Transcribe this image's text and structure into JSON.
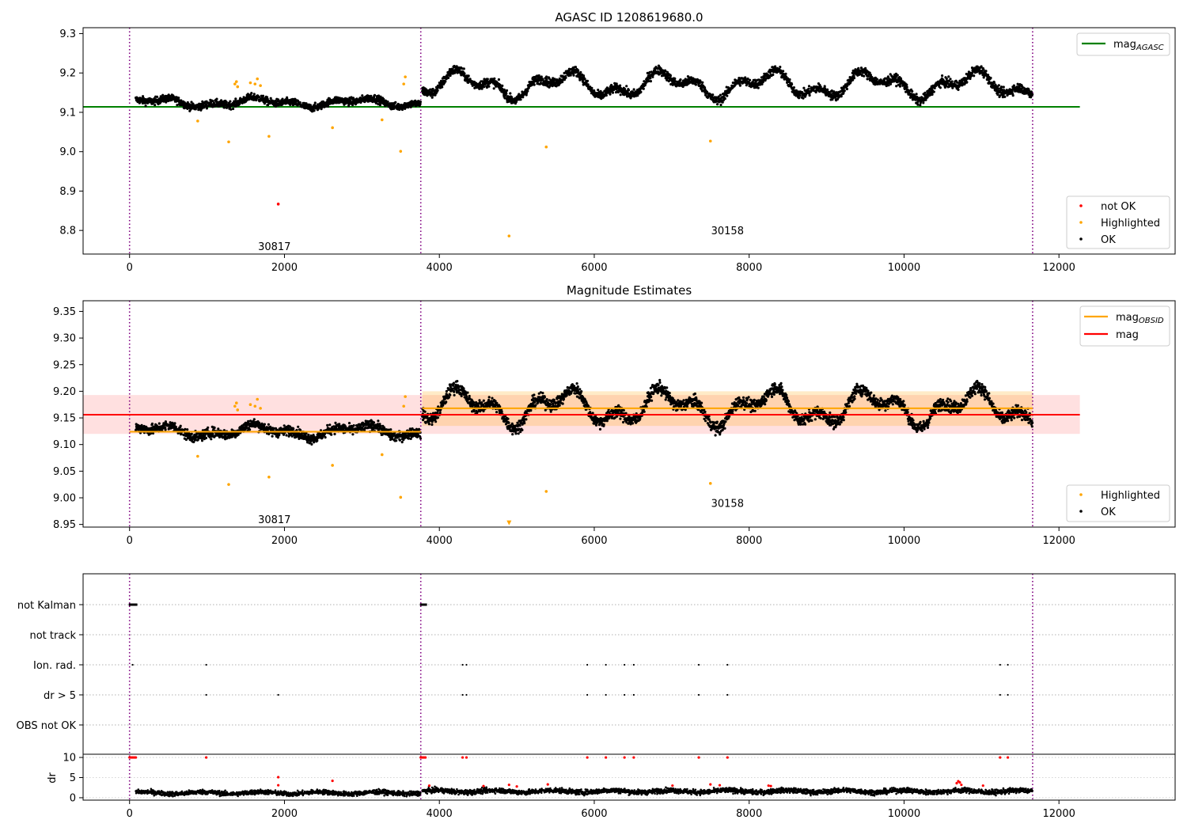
{
  "chart_data": [
    {
      "type": "scatter",
      "title": "AGASC ID 1208619680.0",
      "xlim": [
        -600,
        13500
      ],
      "ylim": [
        8.74,
        9.315
      ],
      "xticks": [
        0,
        2000,
        4000,
        6000,
        8000,
        10000,
        12000
      ],
      "yticks": [
        8.8,
        8.9,
        9.0,
        9.1,
        9.2,
        9.3
      ],
      "obs_boundaries": [
        0,
        3760,
        11660
      ],
      "obsid_labels": [
        {
          "text": "30817",
          "x": 1870,
          "y": 8.76
        },
        {
          "text": "30158",
          "x": 7720,
          "y": 8.8
        }
      ],
      "lines": [
        {
          "name": "mag",
          "subscript": "AGASC",
          "color": "#008000",
          "x": [
            -600,
            12270
          ],
          "y": [
            9.114,
            9.114
          ]
        }
      ],
      "segments": [
        {
          "x": [
            80,
            3760
          ],
          "base": 9.125,
          "amp": 0.012,
          "noise": 0.009
        },
        {
          "x": [
            3780,
            11660
          ],
          "base": 9.17,
          "amp": 0.035,
          "noise": 0.011
        }
      ],
      "highlighted": {
        "color": "#ffa500",
        "x": [
          880,
          1280,
          1360,
          1380,
          1395,
          1560,
          1620,
          1650,
          1690,
          1800,
          2620,
          3260,
          3500,
          3540,
          3560,
          5380,
          4900,
          7500
        ],
        "y": [
          9.078,
          9.025,
          9.172,
          9.178,
          9.165,
          9.175,
          9.172,
          9.185,
          9.168,
          9.039,
          9.061,
          9.081,
          9.001,
          9.172,
          9.19,
          9.012,
          8.786,
          9.027
        ]
      },
      "not_ok": {
        "color": "#ff0000",
        "x": [
          1920
        ],
        "y": [
          8.867
        ]
      },
      "legend_top": [
        {
          "label": "mag",
          "sub": "AGASC",
          "color": "#008000"
        }
      ],
      "legend_bottom": [
        {
          "label": "not OK",
          "color": "#ff0000"
        },
        {
          "label": "Highlighted",
          "color": "#ffa500"
        },
        {
          "label": "OK",
          "color": "#000000"
        }
      ]
    },
    {
      "type": "scatter",
      "title": "Magnitude Estimates",
      "xlim": [
        -600,
        13500
      ],
      "ylim": [
        8.945,
        9.37
      ],
      "xticks": [
        0,
        2000,
        4000,
        6000,
        8000,
        10000,
        12000
      ],
      "yticks": [
        8.95,
        9.0,
        9.05,
        9.1,
        9.15,
        9.2,
        9.25,
        9.3,
        9.35
      ],
      "obs_boundaries": [
        0,
        3760,
        11660
      ],
      "obsid_labels": [
        {
          "text": "30817",
          "x": 1870,
          "y": 8.96
        },
        {
          "text": "30158",
          "x": 7720,
          "y": 8.99
        }
      ],
      "bands": [
        {
          "color": "#ff0000",
          "opacity": 0.12,
          "x": [
            -600,
            12270
          ],
          "y": [
            9.12,
            9.193
          ]
        },
        {
          "color": "#ffa500",
          "opacity": 0.22,
          "x": [
            3780,
            11660
          ],
          "y": [
            9.135,
            9.2
          ]
        }
      ],
      "lines": [
        {
          "name": "mag",
          "subscript": "OBSID",
          "color": "#ffa500",
          "x": [
            0,
            3760
          ],
          "y": [
            9.124,
            9.124
          ]
        },
        {
          "name": "mag",
          "subscript": "OBSID",
          "color": "#ffa500",
          "x": [
            3780,
            11660
          ],
          "y": [
            9.168,
            9.168
          ]
        },
        {
          "name": "mag",
          "subscript": "",
          "color": "#ff0000",
          "x": [
            -600,
            12270
          ],
          "y": [
            9.156,
            9.156
          ]
        }
      ],
      "highlighted": {
        "color": "#ffa500",
        "x": [
          880,
          1280,
          1360,
          1380,
          1395,
          1560,
          1620,
          1650,
          1690,
          1800,
          2620,
          3260,
          3500,
          3540,
          3560,
          5380,
          7500
        ],
        "y": [
          9.078,
          9.025,
          9.172,
          9.178,
          9.165,
          9.175,
          9.172,
          9.185,
          9.168,
          9.039,
          9.061,
          9.081,
          9.001,
          9.172,
          9.19,
          9.012,
          9.027
        ]
      },
      "highlighted_offscale": {
        "x": [
          4900
        ],
        "y": [
          8.95
        ]
      },
      "legend_top": [
        {
          "label": "mag",
          "sub": "OBSID",
          "color": "#ffa500"
        },
        {
          "label": "mag",
          "sub": "",
          "color": "#ff0000"
        }
      ],
      "legend_bottom": [
        {
          "label": "Highlighted",
          "color": "#ffa500"
        },
        {
          "label": "OK",
          "color": "#000000"
        }
      ]
    },
    {
      "type": "scatter",
      "title": "",
      "xlim": [
        -600,
        13500
      ],
      "xticks": [
        0,
        2000,
        4000,
        6000,
        8000,
        10000,
        12000
      ],
      "obs_boundaries": [
        0,
        3760,
        11660
      ],
      "flag_rows": [
        "not Kalman",
        "not track",
        "Ion. rad.",
        "dr > 5",
        "OBS not OK"
      ],
      "flags": {
        "not Kalman": [
          0,
          20,
          40,
          60,
          80,
          3760,
          3780,
          3800,
          3820
        ],
        "not track": [],
        "Ion. rad.": [
          40,
          990,
          4300,
          4350,
          5910,
          6150,
          6390,
          6510,
          7350,
          7720,
          11240,
          11340
        ],
        "dr > 5": [
          990,
          1920,
          4300,
          4350,
          5910,
          6150,
          6390,
          6510,
          7350,
          7720,
          11240,
          11340
        ],
        "OBS not OK": []
      },
      "dr_ylabel": "dr",
      "dr_yticks": [
        0,
        5,
        10
      ],
      "dr_ylim": [
        -0.6,
        10.8
      ],
      "dr_red": {
        "color": "#ff0000",
        "x": [
          0,
          20,
          40,
          60,
          80,
          990,
          3760,
          3780,
          3800,
          3820,
          4300,
          4350,
          5910,
          6150,
          6390,
          6510,
          7350,
          7720,
          11240,
          11340,
          1920,
          1920,
          2620,
          3870,
          4570,
          4900,
          5000,
          5400,
          7010,
          7500,
          7620,
          8250,
          8280,
          10680,
          10700,
          10720,
          10740,
          11020
        ],
        "y": [
          10,
          10,
          10,
          10,
          10,
          10,
          10,
          10,
          10,
          10,
          10,
          10,
          10,
          10,
          10,
          10,
          10,
          10,
          10,
          10,
          5.1,
          3.1,
          4.2,
          3.0,
          2.9,
          3.2,
          2.8,
          3.3,
          3.0,
          3.3,
          3.1,
          3.0,
          2.9,
          3.6,
          4.1,
          3.8,
          3.2,
          3.0
        ]
      },
      "dr_segments": [
        {
          "x": [
            80,
            3760
          ],
          "base": 1.2,
          "noise": 0.55
        },
        {
          "x": [
            3780,
            11660
          ],
          "base": 1.6,
          "noise": 0.6
        }
      ]
    }
  ]
}
